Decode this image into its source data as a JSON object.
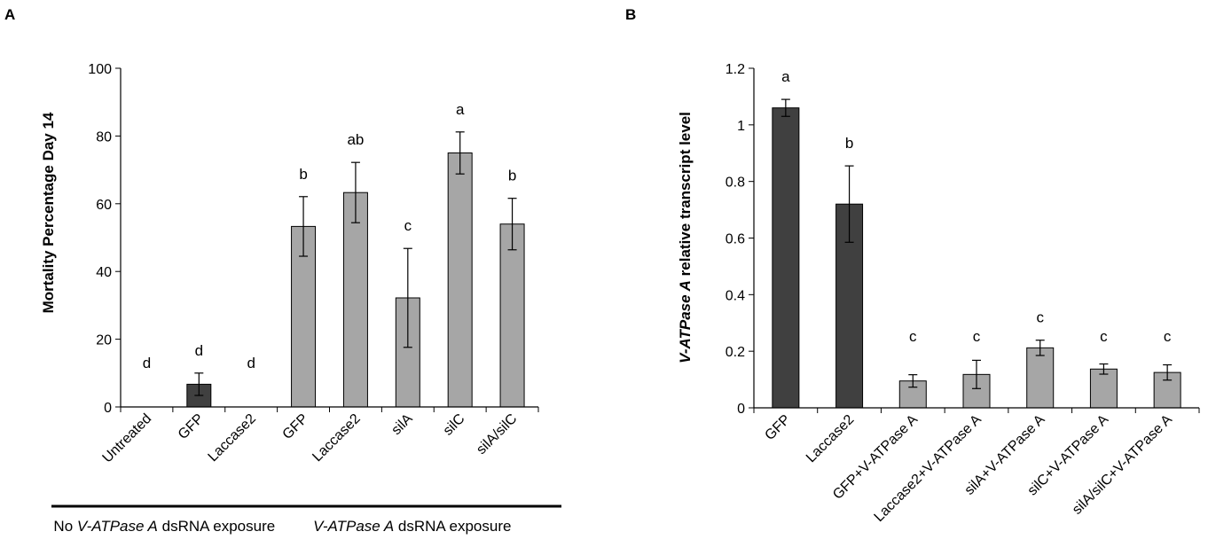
{
  "chart_data": [
    {
      "panel": "A",
      "type": "bar",
      "ylabel": "Mortality Percentage Day 14",
      "ylim": [
        0,
        100
      ],
      "yticks": [
        "0",
        "20",
        "40",
        "60",
        "80",
        "100"
      ],
      "categories": [
        "Untreated",
        "GFP",
        "Laccase2",
        "GFP",
        "Laccase2",
        "silA",
        "silC",
        "silA/silC"
      ],
      "values": [
        0,
        6.7,
        0,
        53.3,
        63.3,
        32.2,
        75,
        54
      ],
      "errors": [
        0,
        3.3,
        0,
        8.8,
        8.9,
        14.6,
        6.2,
        7.6
      ],
      "significance": [
        "d",
        "d",
        "d",
        "b",
        "ab",
        "c",
        "a",
        "b"
      ],
      "bar_colors": [
        "#404040",
        "#404040",
        "#404040",
        "#a6a6a6",
        "#a6a6a6",
        "#a6a6a6",
        "#a6a6a6",
        "#a6a6a6"
      ],
      "groups": [
        {
          "label_pre": "No ",
          "label_italic": "V-ATPase A",
          "label_post": " dsRNA exposure",
          "from": 0,
          "to": 2
        },
        {
          "label_pre": "",
          "label_italic": "V-ATPase A",
          "label_post": " dsRNA exposure",
          "from": 3,
          "to": 7
        }
      ]
    },
    {
      "panel": "B",
      "type": "bar",
      "ylabel_italic": "V-ATPase A",
      "ylabel_rest": " relative transcript level",
      "ylim": [
        0,
        1.2
      ],
      "yticks": [
        "0",
        "0.2",
        "0.4",
        "0.6",
        "0.8",
        "1",
        "1.2"
      ],
      "categories": [
        "GFP",
        "Laccase2",
        "GFP+V-ATPase A",
        "Laccase2+V-ATPase A",
        "silA+V-ATPase A",
        "silC+V-ATPase A",
        "silA/silC+V-ATPase A"
      ],
      "values": [
        1.06,
        0.72,
        0.095,
        0.118,
        0.212,
        0.137,
        0.125
      ],
      "errors": [
        0.03,
        0.135,
        0.022,
        0.05,
        0.027,
        0.018,
        0.027
      ],
      "significance": [
        "a",
        "b",
        "c",
        "c",
        "c",
        "c",
        "c"
      ],
      "bar_colors": [
        "#404040",
        "#404040",
        "#a6a6a6",
        "#a6a6a6",
        "#a6a6a6",
        "#a6a6a6",
        "#a6a6a6"
      ]
    }
  ]
}
